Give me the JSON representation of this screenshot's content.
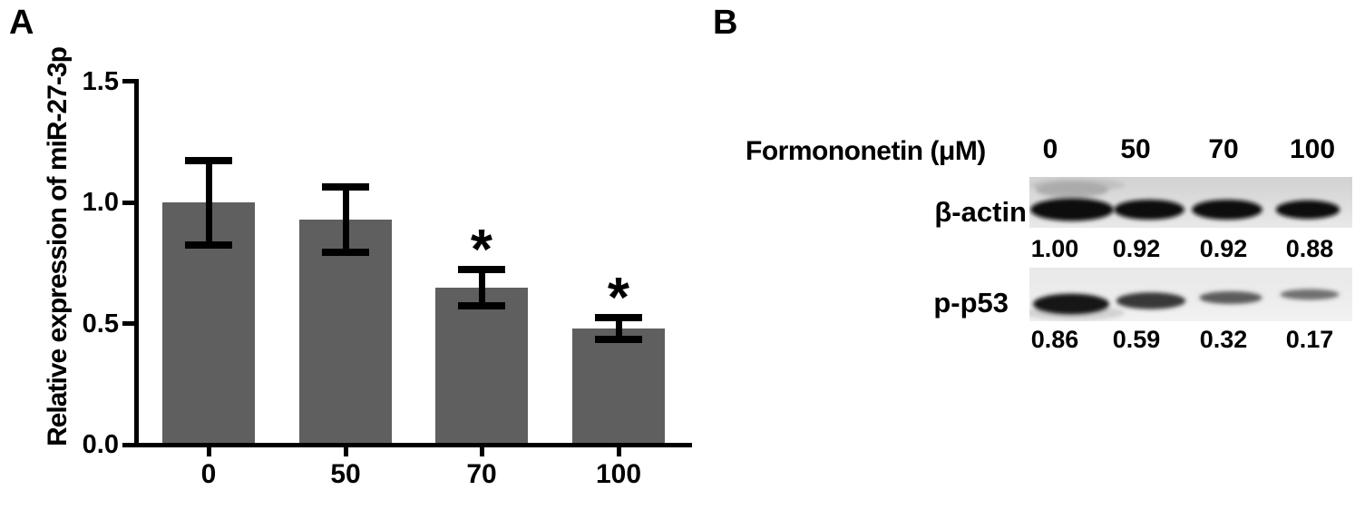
{
  "panel_a": {
    "label": "A"
  },
  "panel_b": {
    "label": "B",
    "treatment_label": "Formononetin (μM)",
    "doses": [
      "0",
      "50",
      "70",
      "100"
    ],
    "blots": [
      {
        "name": "β-actin",
        "values": [
          "1.00",
          "0.92",
          "0.92",
          "0.88"
        ]
      },
      {
        "name": "p-p53",
        "values": [
          "0.86",
          "0.59",
          "0.32",
          "0.17"
        ]
      }
    ]
  },
  "chart_data": {
    "type": "bar",
    "title": "",
    "xlabel": "",
    "ylabel": "Relative expression of miR-27-3p",
    "categories": [
      "0",
      "50",
      "70",
      "100"
    ],
    "values": [
      1.0,
      0.93,
      0.65,
      0.48
    ],
    "errors": [
      0.19,
      0.15,
      0.09,
      0.06
    ],
    "significance": [
      "",
      "",
      "*",
      "*"
    ],
    "ylim": [
      0,
      1.5
    ],
    "yticks": [
      1.5,
      1.0,
      0.5,
      0.0
    ],
    "ytick_labels": [
      "1.5",
      "1.0",
      "0.5",
      "0.0"
    ],
    "grid": false,
    "legend": "none",
    "bar_color": "#5f5f5f",
    "error_color": "#000000"
  }
}
